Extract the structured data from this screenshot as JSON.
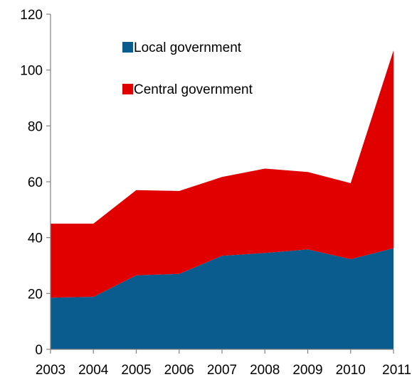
{
  "chart_data": {
    "type": "area",
    "stacked": true,
    "x": [
      "2003",
      "2004",
      "2005",
      "2006",
      "2007",
      "2008",
      "2009",
      "2010",
      "2011"
    ],
    "series": [
      {
        "name": "Local government",
        "values": [
          18.5,
          18.8,
          26.5,
          27.0,
          33.5,
          34.5,
          35.8,
          32.3,
          36.2
        ],
        "color": "#0b5c8e"
      },
      {
        "name": "Central government",
        "values": [
          26.5,
          26.2,
          30.5,
          29.7,
          28.2,
          30.2,
          27.7,
          27.2,
          70.8
        ],
        "color": "#e00000"
      }
    ],
    "ylim": [
      0,
      120
    ],
    "yticks": [
      "0",
      "20",
      "40",
      "60",
      "80",
      "100",
      "120"
    ],
    "grid": false,
    "legend_position": "top-left"
  }
}
